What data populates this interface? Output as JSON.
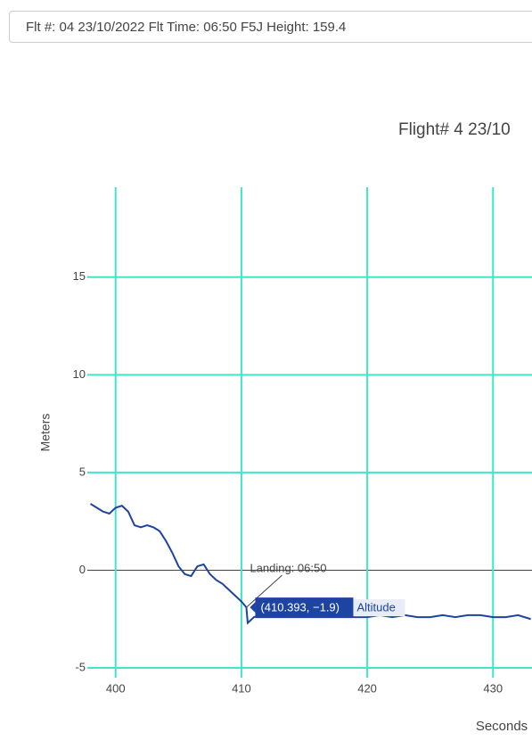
{
  "header": {
    "flight_info": "Flt #: 04 23/10/2022 Flt Time: 06:50 F5J Height: 159.4"
  },
  "chart_data": {
    "type": "line",
    "title": "Flight# 4 23/10",
    "x_label": "Seconds",
    "y_label": "Meters",
    "x": [
      398,
      398.5,
      399,
      399.5,
      400,
      400.5,
      401,
      401.5,
      402,
      402.5,
      403,
      403.5,
      404,
      404.5,
      405,
      405.5,
      406,
      406.5,
      407,
      407.5,
      408,
      408.5,
      409,
      409.5,
      410,
      410.393,
      410.5,
      411,
      411.5,
      412,
      413,
      414,
      415,
      416,
      417,
      418,
      419,
      420,
      421,
      422,
      423,
      424,
      425,
      426,
      427,
      428,
      429,
      430,
      431,
      432,
      433
    ],
    "series": [
      {
        "name": "Altitude",
        "color": "#1c44a0",
        "values": [
          3.4,
          3.2,
          3.0,
          2.9,
          3.2,
          3.3,
          3.0,
          2.3,
          2.2,
          2.3,
          2.2,
          2.0,
          1.5,
          0.9,
          0.2,
          -0.2,
          -0.3,
          0.2,
          0.3,
          -0.2,
          -0.5,
          -0.7,
          -1.0,
          -1.3,
          -1.6,
          -1.9,
          -2.7,
          -2.4,
          -2.3,
          -2.3,
          -2.4,
          -2.3,
          -2.4,
          -2.3,
          -2.4,
          -2.3,
          -2.4,
          -2.4,
          -2.3,
          -2.4,
          -2.3,
          -2.4,
          -2.4,
          -2.3,
          -2.4,
          -2.3,
          -2.3,
          -2.4,
          -2.4,
          -2.3,
          -2.5
        ]
      }
    ],
    "xlim": [
      397.75,
      433.1
    ],
    "ylim": [
      -5.5,
      19.6
    ],
    "xticks": [
      400,
      410,
      420,
      430
    ],
    "yticks": [
      -5,
      0,
      5,
      10,
      15
    ],
    "grid": true,
    "grid_color": "#3de8c8",
    "annotations": [
      {
        "text": "Landing: 06:50",
        "x": 410.393,
        "y": -1.9
      }
    ],
    "hover_label": "(410.393, −1.9)"
  }
}
